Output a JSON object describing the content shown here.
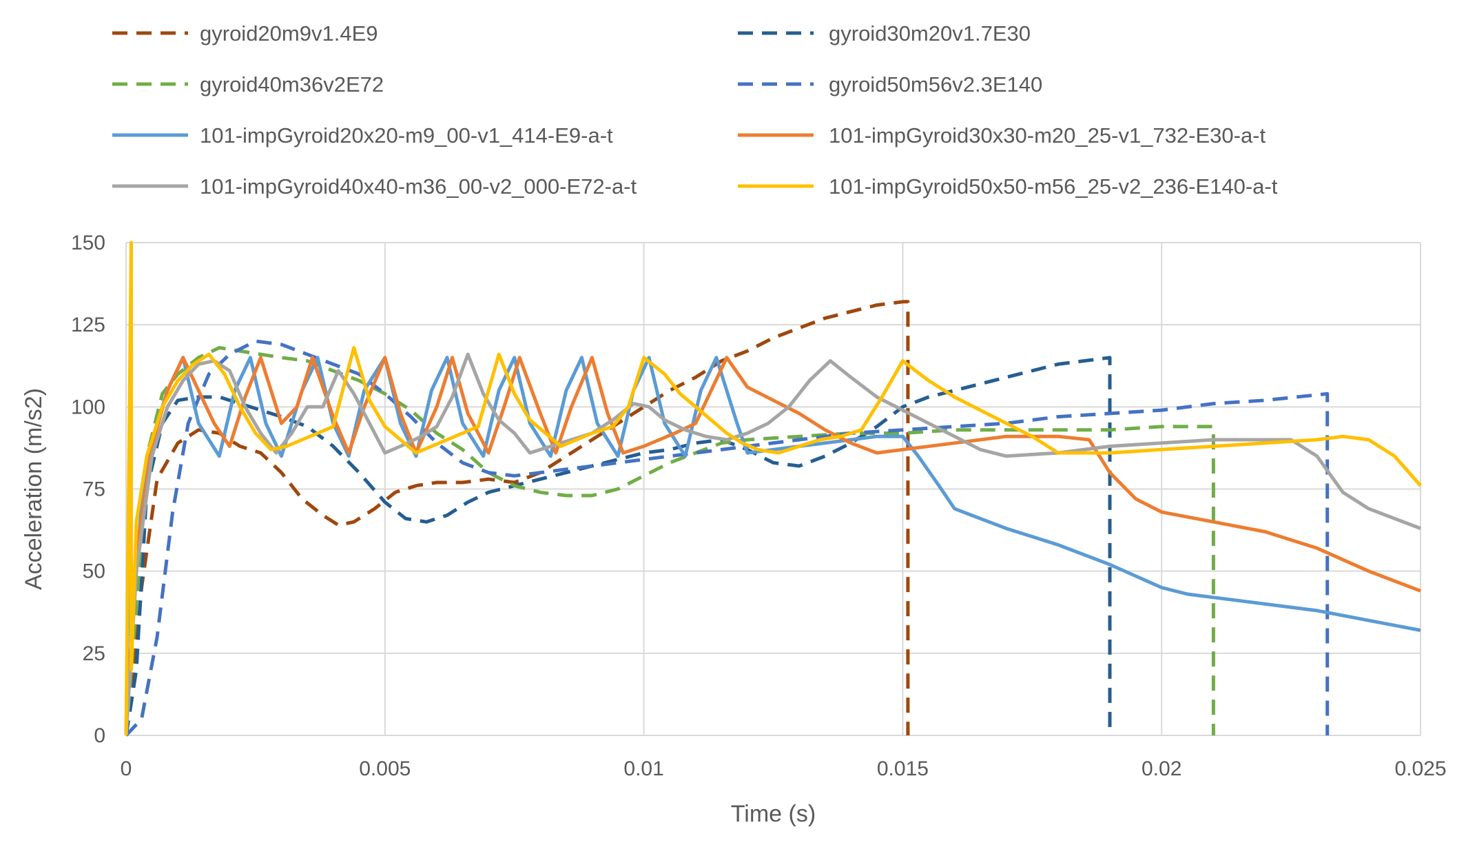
{
  "chart_data": {
    "type": "line",
    "title": "",
    "xlabel": "Time (s)",
    "ylabel": "Acceleration (m/s2)",
    "xlim": [
      0,
      0.025
    ],
    "ylim": [
      0,
      150
    ],
    "xticks": [
      0,
      0.005,
      0.01,
      0.015,
      0.02,
      0.025
    ],
    "xtick_labels": [
      "0",
      "0.005",
      "0.01",
      "0.015",
      "0.02",
      "0.025"
    ],
    "yticks": [
      0,
      25,
      50,
      75,
      100,
      125,
      150
    ],
    "ytick_labels": [
      "0",
      "25",
      "50",
      "75",
      "100",
      "125",
      "150"
    ],
    "grid": true,
    "legend_position": "top",
    "series": [
      {
        "name": "gyroid20m9v1.4E9",
        "color": "#9e480e",
        "dash": "dashed",
        "x": [
          0,
          0.0001,
          0.0003,
          0.0006,
          0.001,
          0.0014,
          0.0018,
          0.0022,
          0.0026,
          0.003,
          0.0034,
          0.0038,
          0.0041,
          0.0044,
          0.0048,
          0.0052,
          0.0056,
          0.006,
          0.0065,
          0.007,
          0.0075,
          0.008,
          0.0085,
          0.009,
          0.0095,
          0.01,
          0.0105,
          0.011,
          0.0115,
          0.012,
          0.0125,
          0.013,
          0.0135,
          0.014,
          0.0145,
          0.015,
          0.0151,
          0.0151
        ],
        "y": [
          0,
          10,
          45,
          78,
          89,
          93,
          92,
          88,
          86,
          80,
          72,
          67,
          64,
          65,
          69,
          74,
          76,
          77,
          77,
          78,
          77,
          80,
          85,
          90,
          95,
          100,
          105,
          109,
          114,
          117,
          121,
          124,
          127,
          129,
          131,
          132,
          132,
          0
        ]
      },
      {
        "name": "gyroid30m20v1.7E30",
        "color": "#255e91",
        "dash": "dashed",
        "x": [
          0,
          0.0002,
          0.0004,
          0.0007,
          0.001,
          0.0014,
          0.0018,
          0.0022,
          0.0026,
          0.003,
          0.0035,
          0.004,
          0.0045,
          0.005,
          0.0054,
          0.0058,
          0.0062,
          0.0066,
          0.007,
          0.0075,
          0.008,
          0.0085,
          0.009,
          0.0095,
          0.01,
          0.0105,
          0.011,
          0.0115,
          0.012,
          0.0125,
          0.013,
          0.0135,
          0.014,
          0.0145,
          0.015,
          0.0155,
          0.016,
          0.0165,
          0.017,
          0.0175,
          0.018,
          0.0185,
          0.019,
          0.019
        ],
        "y": [
          0,
          20,
          75,
          95,
          102,
          103,
          103,
          101,
          99,
          97,
          94,
          88,
          80,
          71,
          66,
          65,
          67,
          71,
          74,
          76,
          78,
          80,
          82,
          84,
          86,
          87,
          89,
          90,
          87,
          83,
          82,
          85,
          89,
          94,
          100,
          103,
          105,
          107,
          109,
          111,
          113,
          114,
          115,
          0
        ]
      },
      {
        "name": "gyroid40m36v2E72",
        "color": "#70ad47",
        "dash": "dashed",
        "x": [
          0,
          0.0002,
          0.0004,
          0.0007,
          0.001,
          0.0014,
          0.0018,
          0.0022,
          0.0026,
          0.003,
          0.0035,
          0.004,
          0.0045,
          0.005,
          0.0055,
          0.006,
          0.0065,
          0.007,
          0.0075,
          0.008,
          0.0085,
          0.009,
          0.0095,
          0.01,
          0.0105,
          0.011,
          0.0115,
          0.012,
          0.013,
          0.014,
          0.015,
          0.016,
          0.017,
          0.018,
          0.019,
          0.02,
          0.021,
          0.021
        ],
        "y": [
          0,
          40,
          85,
          104,
          110,
          115,
          118,
          117,
          116,
          115,
          114,
          111,
          108,
          104,
          99,
          92,
          87,
          80,
          76,
          74,
          73,
          73,
          75,
          79,
          83,
          86,
          89,
          90,
          91,
          92,
          92,
          93,
          93,
          93,
          93,
          94,
          94,
          0
        ]
      },
      {
        "name": "gyroid50m56v2.3E140",
        "color": "#4472c4",
        "dash": "dashed",
        "x": [
          0,
          0.0003,
          0.0006,
          0.0009,
          0.0012,
          0.0016,
          0.002,
          0.0025,
          0.003,
          0.0035,
          0.004,
          0.0045,
          0.005,
          0.0055,
          0.006,
          0.0065,
          0.007,
          0.0075,
          0.008,
          0.0085,
          0.009,
          0.0095,
          0.01,
          0.011,
          0.012,
          0.013,
          0.014,
          0.015,
          0.016,
          0.017,
          0.018,
          0.019,
          0.02,
          0.021,
          0.022,
          0.0232,
          0.0232
        ],
        "y": [
          0,
          5,
          30,
          68,
          95,
          110,
          116,
          120,
          119,
          116,
          113,
          110,
          104,
          97,
          89,
          83,
          80,
          79,
          80,
          81,
          82,
          83,
          84,
          86,
          88,
          90,
          92,
          93,
          94,
          95,
          97,
          98,
          99,
          101,
          102,
          104,
          0
        ]
      },
      {
        "name": "101-impGyroid20x20-m9_00-v1_414-E9-a-t",
        "color": "#5b9bd5",
        "dash": "solid",
        "x": [
          0,
          0.0001,
          0.0001,
          0.0003,
          0.0005,
          0.0008,
          0.0011,
          0.0014,
          0.0018,
          0.0021,
          0.0024,
          0.0027,
          0.003,
          0.0034,
          0.0037,
          0.004,
          0.0043,
          0.0046,
          0.005,
          0.0053,
          0.0056,
          0.0059,
          0.0062,
          0.0065,
          0.0069,
          0.0072,
          0.0075,
          0.0078,
          0.0082,
          0.0085,
          0.0088,
          0.0091,
          0.0095,
          0.0098,
          0.0101,
          0.0104,
          0.0108,
          0.0111,
          0.0114,
          0.0118,
          0.012,
          0.0125,
          0.013,
          0.0135,
          0.014,
          0.0145,
          0.015,
          0.0153,
          0.0157,
          0.016,
          0.0165,
          0.017,
          0.018,
          0.019,
          0.02,
          0.0205,
          0.021,
          0.022,
          0.023,
          0.024,
          0.025
        ],
        "y": [
          0,
          100,
          30,
          70,
          90,
          105,
          115,
          95,
          85,
          105,
          115,
          95,
          85,
          105,
          115,
          95,
          85,
          105,
          115,
          95,
          85,
          105,
          115,
          95,
          85,
          105,
          115,
          95,
          85,
          105,
          115,
          95,
          85,
          105,
          115,
          95,
          85,
          105,
          115,
          95,
          86,
          87,
          88,
          89,
          90,
          91,
          91,
          85,
          76,
          69,
          66,
          63,
          58,
          52,
          45,
          43,
          42,
          40,
          38,
          35,
          32
        ]
      },
      {
        "name": "101-impGyroid30x30-m20_25-v1_732-E30-a-t",
        "color": "#ed7d31",
        "dash": "solid",
        "x": [
          0,
          0.0002,
          0.0005,
          0.0008,
          0.0011,
          0.0014,
          0.0017,
          0.002,
          0.0023,
          0.0026,
          0.003,
          0.0033,
          0.0036,
          0.004,
          0.0043,
          0.0046,
          0.005,
          0.0053,
          0.0056,
          0.006,
          0.0063,
          0.0066,
          0.007,
          0.0073,
          0.0076,
          0.008,
          0.0083,
          0.0086,
          0.009,
          0.0093,
          0.0096,
          0.01,
          0.0103,
          0.0106,
          0.011,
          0.0113,
          0.0116,
          0.012,
          0.0125,
          0.013,
          0.0135,
          0.014,
          0.0145,
          0.015,
          0.016,
          0.017,
          0.018,
          0.0186,
          0.019,
          0.0195,
          0.02,
          0.021,
          0.022,
          0.023,
          0.024,
          0.025
        ],
        "y": [
          0,
          55,
          88,
          105,
          115,
          105,
          95,
          88,
          103,
          115,
          95,
          100,
          115,
          97,
          86,
          100,
          115,
          98,
          86,
          100,
          115,
          98,
          86,
          100,
          115,
          98,
          86,
          100,
          115,
          98,
          86,
          88,
          90,
          92,
          95,
          105,
          115,
          106,
          102,
          98,
          93,
          89,
          86,
          87,
          89,
          91,
          91,
          90,
          80,
          72,
          68,
          65,
          62,
          57,
          50,
          44
        ]
      },
      {
        "name": "101-impGyroid40x40-m36_00-v2_000-E72-a-t",
        "color": "#a5a5a5",
        "dash": "solid",
        "x": [
          0,
          0.0002,
          0.0005,
          0.0008,
          0.0011,
          0.0014,
          0.0017,
          0.002,
          0.0023,
          0.0026,
          0.0029,
          0.0032,
          0.0035,
          0.0038,
          0.0041,
          0.0044,
          0.0047,
          0.005,
          0.0053,
          0.0057,
          0.006,
          0.0063,
          0.0066,
          0.0069,
          0.0072,
          0.0075,
          0.0078,
          0.0082,
          0.0086,
          0.009,
          0.0094,
          0.0098,
          0.0101,
          0.0104,
          0.0108,
          0.0112,
          0.0116,
          0.012,
          0.0124,
          0.0128,
          0.0132,
          0.0136,
          0.014,
          0.0145,
          0.015,
          0.0155,
          0.016,
          0.0165,
          0.017,
          0.018,
          0.019,
          0.02,
          0.021,
          0.022,
          0.0225,
          0.023,
          0.0235,
          0.024,
          0.025
        ],
        "y": [
          0,
          50,
          85,
          100,
          108,
          113,
          114,
          111,
          100,
          92,
          86,
          92,
          100,
          100,
          111,
          104,
          95,
          86,
          88,
          91,
          94,
          103,
          116,
          104,
          96,
          92,
          86,
          88,
          90,
          92,
          96,
          101,
          100,
          96,
          93,
          91,
          90,
          92,
          95,
          100,
          108,
          114,
          109,
          103,
          99,
          95,
          91,
          87,
          85,
          86,
          88,
          89,
          90,
          90,
          90,
          85,
          74,
          69,
          63
        ]
      },
      {
        "name": "101-impGyroid50x50-m56_25-v2_236-E140-a-t",
        "color": "#ffc000",
        "dash": "solid",
        "x": [
          0,
          0.0001,
          0.0001,
          0.0002,
          0.0004,
          0.0007,
          0.001,
          0.0013,
          0.0016,
          0.0019,
          0.0022,
          0.0025,
          0.0028,
          0.0031,
          0.0034,
          0.0037,
          0.004,
          0.0044,
          0.0047,
          0.005,
          0.0053,
          0.0056,
          0.0059,
          0.0062,
          0.0065,
          0.0068,
          0.0072,
          0.0075,
          0.0078,
          0.0081,
          0.0084,
          0.0087,
          0.009,
          0.0094,
          0.0097,
          0.01,
          0.0104,
          0.0107,
          0.011,
          0.0113,
          0.0116,
          0.0119,
          0.0122,
          0.0126,
          0.013,
          0.0134,
          0.0138,
          0.0142,
          0.0146,
          0.015,
          0.0155,
          0.016,
          0.0165,
          0.017,
          0.0175,
          0.018,
          0.019,
          0.02,
          0.021,
          0.022,
          0.023,
          0.0235,
          0.024,
          0.0245,
          0.025
        ],
        "y": [
          0,
          150,
          20,
          65,
          85,
          100,
          108,
          113,
          116,
          110,
          100,
          92,
          87,
          88,
          90,
          92,
          94,
          118,
          102,
          94,
          90,
          86,
          88,
          90,
          92,
          94,
          116,
          104,
          96,
          92,
          88,
          90,
          92,
          94,
          100,
          115,
          110,
          104,
          100,
          96,
          92,
          89,
          87,
          86,
          88,
          90,
          91,
          93,
          103,
          114,
          108,
          103,
          99,
          95,
          91,
          86,
          86,
          87,
          88,
          89,
          90,
          91,
          90,
          85,
          76
        ]
      }
    ]
  }
}
